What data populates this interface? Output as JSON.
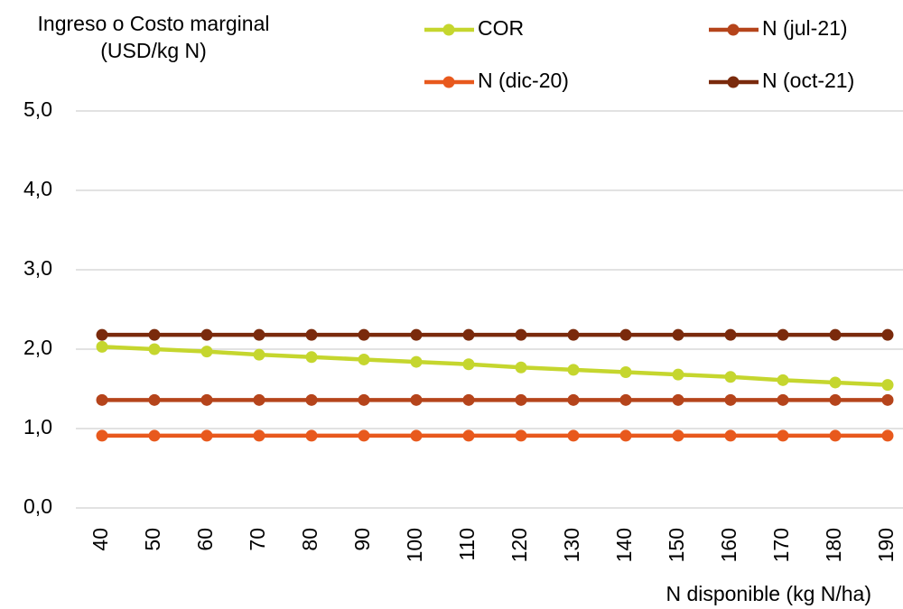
{
  "chart_data": {
    "type": "line",
    "y_label": [
      "Ingreso o Costo marginal",
      "(USD/kg N)"
    ],
    "x_label": "N disponible (kg N/ha)",
    "categories": [
      "40",
      "50",
      "60",
      "70",
      "80",
      "90",
      "100",
      "110",
      "120",
      "130",
      "140",
      "150",
      "160",
      "170",
      "180",
      "190"
    ],
    "series": [
      {
        "name": "COR",
        "color": "#c5d62e",
        "values": [
          2.03,
          2.0,
          1.97,
          1.93,
          1.9,
          1.87,
          1.84,
          1.81,
          1.77,
          1.74,
          1.71,
          1.68,
          1.65,
          1.61,
          1.58,
          1.55
        ]
      },
      {
        "name": "N (dic-20)",
        "color": "#e8591d",
        "values": [
          0.91,
          0.91,
          0.91,
          0.91,
          0.91,
          0.91,
          0.91,
          0.91,
          0.91,
          0.91,
          0.91,
          0.91,
          0.91,
          0.91,
          0.91,
          0.91
        ]
      },
      {
        "name": "N (jul-21)",
        "color": "#b5441b",
        "values": [
          1.36,
          1.36,
          1.36,
          1.36,
          1.36,
          1.36,
          1.36,
          1.36,
          1.36,
          1.36,
          1.36,
          1.36,
          1.36,
          1.36,
          1.36,
          1.36
        ]
      },
      {
        "name": "N (oct-21)",
        "color": "#7a2a0c",
        "values": [
          2.18,
          2.18,
          2.18,
          2.18,
          2.18,
          2.18,
          2.18,
          2.18,
          2.18,
          2.18,
          2.18,
          2.18,
          2.18,
          2.18,
          2.18,
          2.18
        ]
      }
    ],
    "ylim": [
      0,
      5
    ],
    "yticks": [
      {
        "value": 0,
        "label": "0,0"
      },
      {
        "value": 1,
        "label": "1,0"
      },
      {
        "value": 2,
        "label": "2,0"
      },
      {
        "value": 3,
        "label": "3,0"
      },
      {
        "value": 4,
        "label": "4,0"
      },
      {
        "value": 5,
        "label": "5,0"
      }
    ],
    "grid": true,
    "legend": "top"
  }
}
